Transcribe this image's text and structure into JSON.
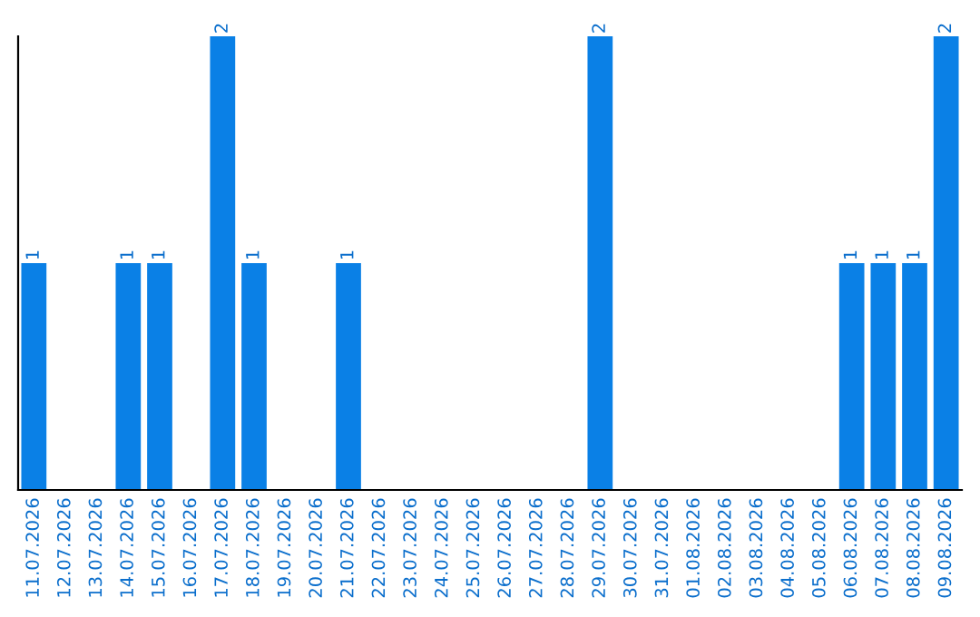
{
  "chart_data": {
    "type": "bar",
    "categories": [
      "11.07.2026",
      "12.07.2026",
      "13.07.2026",
      "14.07.2026",
      "15.07.2026",
      "16.07.2026",
      "17.07.2026",
      "18.07.2026",
      "19.07.2026",
      "20.07.2026",
      "21.07.2026",
      "22.07.2026",
      "23.07.2026",
      "24.07.2026",
      "25.07.2026",
      "26.07.2026",
      "27.07.2026",
      "28.07.2026",
      "29.07.2026",
      "30.07.2026",
      "31.07.2026",
      "01.08.2026",
      "02.08.2026",
      "03.08.2026",
      "04.08.2026",
      "05.08.2026",
      "06.08.2026",
      "07.08.2026",
      "08.08.2026",
      "09.08.2026"
    ],
    "values": [
      1,
      0,
      0,
      1,
      1,
      0,
      2,
      1,
      0,
      0,
      1,
      0,
      0,
      0,
      0,
      0,
      0,
      0,
      2,
      0,
      0,
      0,
      0,
      0,
      0,
      0,
      1,
      1,
      1,
      2
    ],
    "value_labels": [
      "1",
      null,
      null,
      "1",
      "1",
      null,
      "2",
      "1",
      null,
      null,
      "1",
      null,
      null,
      null,
      null,
      null,
      null,
      null,
      "2",
      null,
      null,
      null,
      null,
      null,
      null,
      null,
      "1",
      "1",
      "1",
      "2"
    ],
    "color": "#0a80e6",
    "ylim": [
      0,
      2
    ],
    "tick_labels": "x",
    "grid": false,
    "legend": false
  }
}
